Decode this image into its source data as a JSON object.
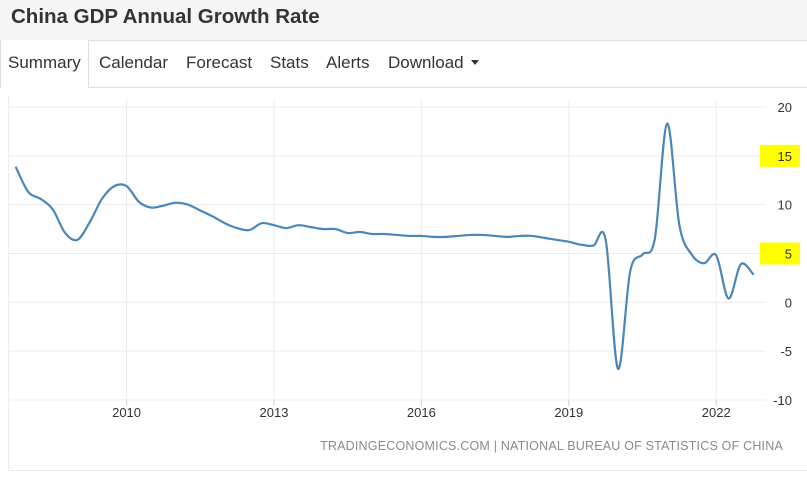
{
  "header": {
    "title": "China GDP Annual Growth Rate"
  },
  "tabs": [
    {
      "label": "Summary",
      "active": true
    },
    {
      "label": "Calendar",
      "active": false
    },
    {
      "label": "Forecast",
      "active": false
    },
    {
      "label": "Stats",
      "active": false
    },
    {
      "label": "Alerts",
      "active": false
    },
    {
      "label": "Download",
      "active": false,
      "dropdown": true
    }
  ],
  "source": "TRADINGECONOMICS.COM | NATIONAL BUREAU OF STATISTICS OF CHINA",
  "colors": {
    "line": "#4a86b8",
    "highlight": "#ffff00",
    "grid": "#ececec"
  },
  "chart_data": {
    "type": "line",
    "title": "",
    "xlabel": "",
    "ylabel": "",
    "ylim": [
      -10,
      20
    ],
    "xlim": [
      2007.75,
      2022.85
    ],
    "grid": true,
    "y_axis_position": "right",
    "y_ticks": [
      20,
      15,
      10,
      5,
      0,
      -5,
      -10
    ],
    "highlighted_y_ticks": [
      15,
      5
    ],
    "x_ticks": [
      2010,
      2013,
      2016,
      2019,
      2022
    ],
    "x_tick_labels": [
      "2010",
      "2013",
      "2016",
      "2019",
      "2022"
    ],
    "series": [
      {
        "x": [
          2007.75,
          2008.0,
          2008.25,
          2008.5,
          2008.75,
          2009.0,
          2009.25,
          2009.5,
          2009.75,
          2010.0,
          2010.25,
          2010.5,
          2010.75,
          2011.0,
          2011.25,
          2011.5,
          2011.75,
          2012.0,
          2012.25,
          2012.5,
          2012.75,
          2013.0,
          2013.25,
          2013.5,
          2013.75,
          2014.0,
          2014.25,
          2014.5,
          2014.75,
          2015.0,
          2015.25,
          2015.5,
          2015.75,
          2016.0,
          2016.25,
          2016.5,
          2016.75,
          2017.0,
          2017.25,
          2017.5,
          2017.75,
          2018.0,
          2018.25,
          2018.5,
          2018.75,
          2019.0,
          2019.25,
          2019.5,
          2019.75,
          2020.0,
          2020.25,
          2020.5,
          2020.75,
          2021.0,
          2021.25,
          2021.5,
          2021.75,
          2022.0,
          2022.25,
          2022.5,
          2022.75
        ],
        "values": [
          13.8,
          11.3,
          10.6,
          9.5,
          7.1,
          6.4,
          8.2,
          10.6,
          11.9,
          11.9,
          10.3,
          9.7,
          9.9,
          10.2,
          10.0,
          9.4,
          8.8,
          8.1,
          7.6,
          7.4,
          8.1,
          7.9,
          7.6,
          7.9,
          7.7,
          7.5,
          7.5,
          7.1,
          7.2,
          7.0,
          7.0,
          6.9,
          6.8,
          6.8,
          6.7,
          6.7,
          6.8,
          6.9,
          6.9,
          6.8,
          6.7,
          6.8,
          6.8,
          6.6,
          6.4,
          6.2,
          5.9,
          5.8,
          6.4,
          -6.8,
          3.2,
          4.9,
          6.5,
          18.3,
          7.9,
          4.9,
          4.0,
          4.8,
          0.4,
          3.9,
          2.9
        ]
      }
    ]
  }
}
